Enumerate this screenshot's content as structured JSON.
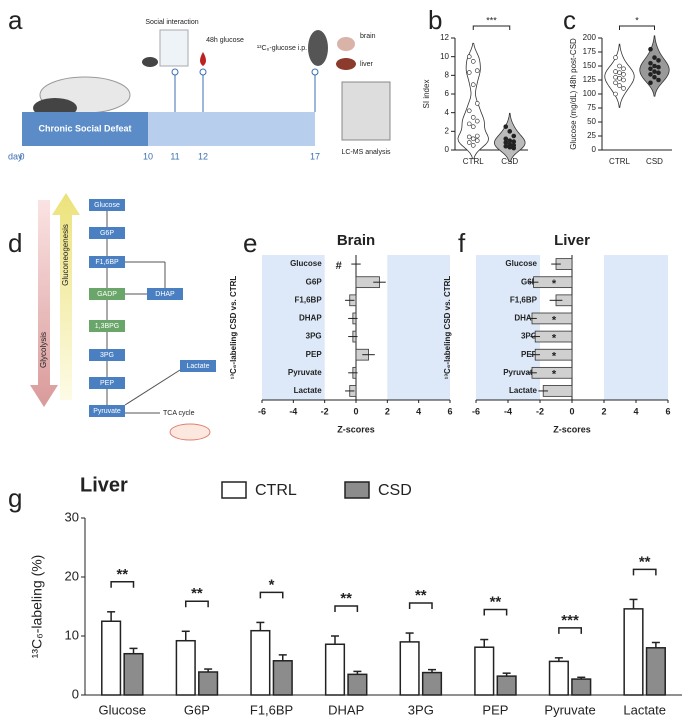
{
  "panel_labels": [
    "a",
    "b",
    "c",
    "d",
    "e",
    "f",
    "g"
  ],
  "timeline": {
    "bar_label": "Chronic Social Defeat",
    "axis_label": "day",
    "days": [
      "0",
      "10",
      "11",
      "12",
      "17"
    ],
    "events": [
      "Social interaction",
      "48h glucose",
      "¹³C₆-glucose i.p."
    ],
    "tissues": [
      "brain",
      "liver"
    ],
    "analysis": "LC-MS analysis"
  },
  "pathway": {
    "nodes": [
      "Glucose",
      "G6P",
      "F1,6BP",
      "GADP",
      "DHAP",
      "1,3BPG",
      "3PG",
      "PEP",
      "Pyruvate",
      "Lactate"
    ],
    "tca": "TCA cycle",
    "up_arrow": "Gluconeogenesis",
    "down_arrow": "Glycolysis"
  },
  "chart_data": [
    {
      "type": "violin",
      "ylabel": "SI index",
      "categories": [
        "CTRL",
        "CSD"
      ],
      "colors": [
        "#ffffff",
        "#bbbbbb"
      ],
      "point_colors": [
        "#ffffff",
        "#222222"
      ],
      "points": [
        [
          10,
          9.5,
          8.5,
          8.3,
          7,
          5,
          4.2,
          3.5,
          3.1,
          2.8,
          2.5,
          1.5,
          1.4,
          1.2,
          1.0,
          0.8,
          0.5
        ],
        [
          2.5,
          2,
          1.5,
          1.2,
          1.0,
          0.9,
          0.8,
          0.6,
          0.5,
          0.4,
          0.3,
          0.2
        ]
      ],
      "ylim": [
        0,
        12
      ],
      "yticks": [
        0,
        2,
        4,
        6,
        8,
        10,
        12
      ],
      "significance": "***"
    },
    {
      "type": "violin",
      "ylabel": "Glucose (mg/dL) 48h post-CSD",
      "categories": [
        "CTRL",
        "CSD"
      ],
      "colors": [
        "#ffffff",
        "#999999"
      ],
      "point_colors": [
        "#ffffff",
        "#222222"
      ],
      "points": [
        [
          165,
          150,
          145,
          140,
          138,
          135,
          130,
          128,
          125,
          120,
          115,
          110,
          100
        ],
        [
          180,
          165,
          160,
          155,
          150,
          148,
          145,
          140,
          138,
          135,
          130,
          125,
          120
        ]
      ],
      "ylim": [
        0,
        200
      ],
      "yticks": [
        0,
        25,
        50,
        75,
        100,
        125,
        150,
        175,
        200
      ],
      "significance": "*"
    },
    {
      "type": "hbar",
      "title": "Brain",
      "ylabel": "¹³C₆-labeling CSD vs. CTRL",
      "xlabel": "Z-scores",
      "categories": [
        "Glucose",
        "G6P",
        "F1,6BP",
        "DHAP",
        "3PG",
        "PEP",
        "Pyruvate",
        "Lactate"
      ],
      "values": [
        0,
        1.5,
        -0.4,
        -0.2,
        -0.2,
        0.8,
        -0.2,
        -0.4
      ],
      "errors": [
        0.3,
        0.4,
        0.3,
        0.3,
        0.3,
        0.4,
        0.3,
        0.3
      ],
      "markers": [
        "#",
        null,
        null,
        null,
        null,
        null,
        null,
        null
      ],
      "xlim": [
        -6,
        6
      ],
      "xticks": [
        -6,
        -4,
        -2,
        0,
        2,
        4,
        6
      ],
      "shade_beyond": [
        -2,
        2
      ]
    },
    {
      "type": "hbar",
      "title": "Liver",
      "ylabel": "¹³C₆-labeling CSD vs. CTRL",
      "xlabel": "Z-scores",
      "categories": [
        "Glucose",
        "G6P",
        "F1,6BP",
        "DHAP",
        "3PG",
        "PEP",
        "Pyruvate",
        "Lactate"
      ],
      "values": [
        -1.0,
        -2.4,
        -1.0,
        -2.5,
        -2.3,
        -2.3,
        -2.5,
        -1.8
      ],
      "errors": [
        0.3,
        0.3,
        0.4,
        0.3,
        0.3,
        0.3,
        0.3,
        0.3
      ],
      "markers": [
        null,
        "*",
        null,
        "*",
        "*",
        "*",
        "*",
        null
      ],
      "xlim": [
        -6,
        6
      ],
      "xticks": [
        -6,
        -4,
        -2,
        0,
        2,
        4,
        6
      ],
      "shade_beyond": [
        -2,
        2
      ]
    },
    {
      "type": "bar",
      "title": "Liver",
      "ylabel": "¹³C₆-labeling (%)",
      "categories": [
        "Glucose",
        "G6P",
        "F1,6BP",
        "DHAP",
        "3PG",
        "PEP",
        "Pyruvate",
        "Lactate"
      ],
      "series": [
        {
          "name": "CTRL",
          "color": "#ffffff",
          "values": [
            12.5,
            9.2,
            10.9,
            8.6,
            9.0,
            8.1,
            5.7,
            14.6
          ],
          "errors": [
            1.6,
            1.6,
            1.4,
            1.4,
            1.5,
            1.3,
            0.6,
            1.6
          ]
        },
        {
          "name": "CSD",
          "color": "#8c8c8c",
          "values": [
            7.0,
            3.9,
            5.8,
            3.5,
            3.8,
            3.2,
            2.7,
            8.0
          ],
          "errors": [
            0.9,
            0.5,
            1.0,
            0.5,
            0.5,
            0.5,
            0.3,
            0.9
          ]
        }
      ],
      "significance": [
        "**",
        "**",
        "*",
        "**",
        "**",
        "**",
        "***",
        "**"
      ],
      "ylim": [
        0,
        30
      ],
      "yticks": [
        0,
        10,
        20,
        30
      ]
    }
  ]
}
